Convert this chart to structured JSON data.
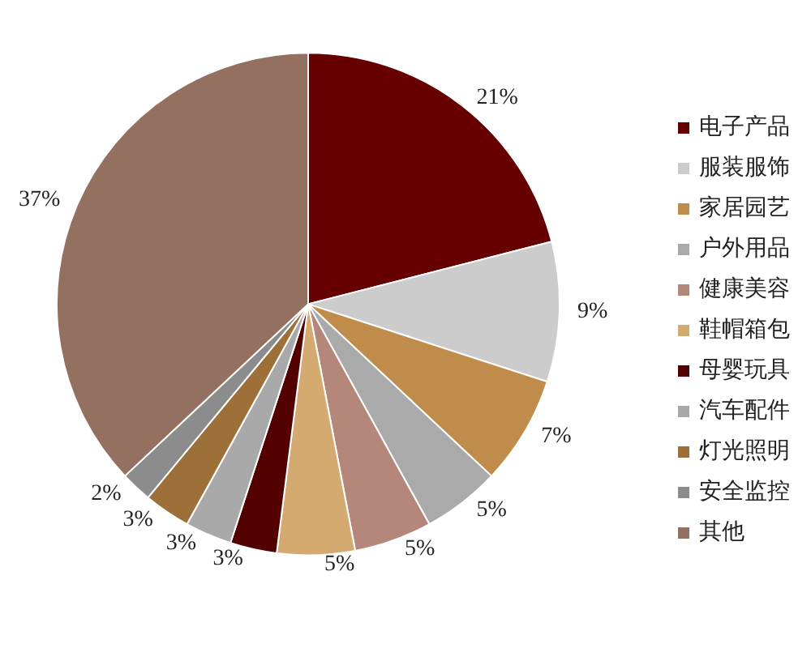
{
  "chart_data": {
    "type": "pie",
    "categories": [
      "电子产品",
      "服装服饰",
      "家居园艺",
      "户外用品",
      "健康美容",
      "鞋帽箱包",
      "母婴玩具",
      "汽车配件",
      "灯光照明",
      "安全监控",
      "其他"
    ],
    "values": [
      21,
      9,
      7,
      5,
      5,
      5,
      3,
      3,
      3,
      2,
      37
    ],
    "value_labels": [
      "21%",
      "9%",
      "7%",
      "5%",
      "5%",
      "5%",
      "3%",
      "3%",
      "3%",
      "2%",
      "37%"
    ],
    "colors": [
      "#660000",
      "#cccccc",
      "#c08c4c",
      "#aaaaaa",
      "#b4877a",
      "#d4aa70",
      "#520000",
      "#a9a9a9",
      "#9c7038",
      "#8c8c8c",
      "#947060"
    ],
    "legend": "right"
  }
}
